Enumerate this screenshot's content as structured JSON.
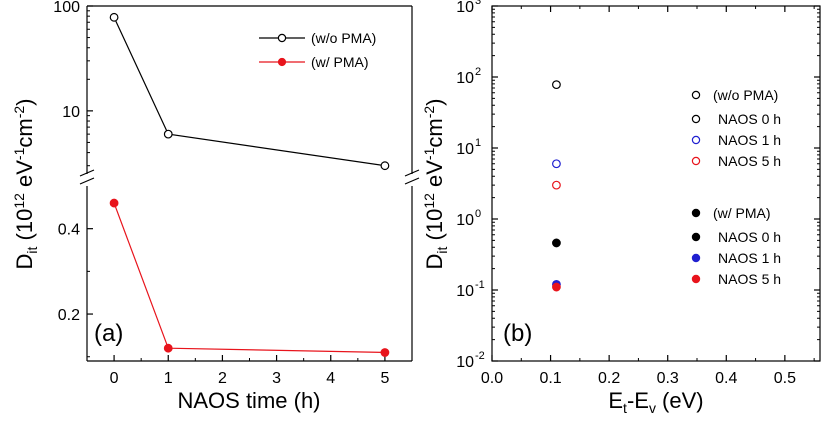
{
  "chart_data": [
    {
      "type": "line",
      "panel_label": "(a)",
      "xlabel": "NAOS time (h)",
      "ylabel": {
        "base": "D",
        "sub": "it",
        "unit": " (10",
        "unit_sup": "12",
        "unit_mid": " eV",
        "unit_sup2": "-1",
        "unit_end": "cm",
        "unit_sup3": "-2",
        "unit_close": ")"
      },
      "x_ticks": [
        "0",
        "1",
        "2",
        "3",
        "4",
        "5"
      ],
      "xlim": [
        -0.5,
        5.5
      ],
      "y_axis": "broken",
      "upper_segment": {
        "scale": "log",
        "ylim": [
          2.5,
          100
        ],
        "tick_labels": [
          "10",
          "100"
        ],
        "tick_values": [
          10,
          100
        ]
      },
      "lower_segment": {
        "scale": "linear",
        "ylim": [
          0.09,
          0.5
        ],
        "tick_labels": [
          "0.2",
          "0.4"
        ],
        "tick_values": [
          0.2,
          0.4
        ]
      },
      "series": [
        {
          "name": "(w/o PMA)",
          "color": "#000000",
          "marker": "open-circle",
          "x": [
            0,
            1,
            5
          ],
          "y": [
            78,
            6.0,
            3.0
          ]
        },
        {
          "name": "(w/ PMA)",
          "color": "#e8141c",
          "marker": "filled-circle",
          "x": [
            0,
            1,
            5
          ],
          "y": [
            0.46,
            0.12,
            0.11
          ]
        }
      ]
    },
    {
      "type": "scatter",
      "panel_label": "(b)",
      "xlabel": {
        "base": "E",
        "sub1": "t",
        "mid": "-E",
        "sub2": "v",
        "end": " (eV)"
      },
      "ylabel": {
        "base": "D",
        "sub": "it",
        "unit": " (10",
        "unit_sup": "12",
        "unit_mid": " eV",
        "unit_sup2": "-1",
        "unit_end": "cm",
        "unit_sup3": "-2",
        "unit_close": ")"
      },
      "x_ticks": [
        "0.0",
        "0.1",
        "0.2",
        "0.3",
        "0.4",
        "0.5"
      ],
      "xlim": [
        0.0,
        0.56
      ],
      "y_scale": "log",
      "ylim": [
        0.01,
        1000
      ],
      "y_ticks": [
        {
          "mant": "10",
          "exp": "-2"
        },
        {
          "mant": "10",
          "exp": "-1"
        },
        {
          "mant": "10",
          "exp": "0"
        },
        {
          "mant": "10",
          "exp": "1"
        },
        {
          "mant": "10",
          "exp": "2"
        },
        {
          "mant": "10",
          "exp": "3"
        }
      ],
      "legend_groups": [
        {
          "title": "(w/o PMA)",
          "items": [
            {
              "name": "NAOS 0 h",
              "color": "#000000",
              "filled": false
            },
            {
              "name": "NAOS 1 h",
              "color": "#2020d0",
              "filled": false
            },
            {
              "name": "NAOS 5 h",
              "color": "#e8141c",
              "filled": false
            }
          ]
        },
        {
          "title": "(w/ PMA)",
          "items": [
            {
              "name": "NAOS 0 h",
              "color": "#000000",
              "filled": true
            },
            {
              "name": "NAOS 1 h",
              "color": "#2020d0",
              "filled": true
            },
            {
              "name": "NAOS 5 h",
              "color": "#e8141c",
              "filled": true
            }
          ]
        }
      ],
      "points": [
        {
          "group": "(w/o PMA)",
          "label": "NAOS 0 h",
          "x": 0.11,
          "y": 78,
          "color": "#000000",
          "filled": false
        },
        {
          "group": "(w/o PMA)",
          "label": "NAOS 1 h",
          "x": 0.11,
          "y": 6.0,
          "color": "#2020d0",
          "filled": false
        },
        {
          "group": "(w/o PMA)",
          "label": "NAOS 5 h",
          "x": 0.11,
          "y": 3.0,
          "color": "#e8141c",
          "filled": false
        },
        {
          "group": "(w/ PMA)",
          "label": "NAOS 0 h",
          "x": 0.11,
          "y": 0.46,
          "color": "#000000",
          "filled": true
        },
        {
          "group": "(w/ PMA)",
          "label": "NAOS 1 h",
          "x": 0.11,
          "y": 0.12,
          "color": "#2020d0",
          "filled": true
        },
        {
          "group": "(w/ PMA)",
          "label": "NAOS 5 h",
          "x": 0.11,
          "y": 0.11,
          "color": "#e8141c",
          "filled": true
        }
      ]
    }
  ]
}
